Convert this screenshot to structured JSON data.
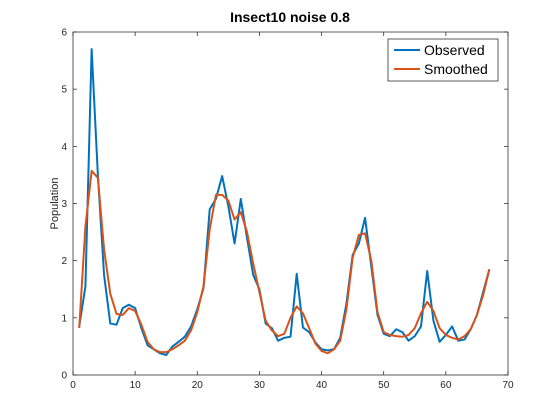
{
  "chart_data": {
    "type": "line",
    "title": "Insect10 noise 0.8",
    "xlabel": "",
    "ylabel": "Population",
    "xlim": [
      0,
      70
    ],
    "ylim": [
      0,
      6
    ],
    "xticks": [
      0,
      10,
      20,
      30,
      40,
      50,
      60,
      70
    ],
    "yticks": [
      0,
      1,
      2,
      3,
      4,
      5,
      6
    ],
    "grid": false,
    "legend_position": "top-right",
    "series": [
      {
        "name": "Observed",
        "color": "#0072BD",
        "x": [
          1,
          2,
          3,
          4,
          5,
          6,
          7,
          8,
          9,
          10,
          11,
          12,
          13,
          14,
          15,
          16,
          17,
          18,
          19,
          20,
          21,
          22,
          23,
          24,
          25,
          26,
          27,
          28,
          29,
          30,
          31,
          32,
          33,
          34,
          35,
          36,
          37,
          38,
          39,
          40,
          41,
          42,
          43,
          44,
          45,
          46,
          47,
          48,
          49,
          50,
          51,
          52,
          53,
          54,
          55,
          56,
          57,
          58,
          59,
          60,
          61,
          62,
          63,
          64,
          65,
          66,
          67
        ],
        "y": [
          0.85,
          1.55,
          5.7,
          3.5,
          1.75,
          0.9,
          0.88,
          1.17,
          1.23,
          1.17,
          0.82,
          0.52,
          0.45,
          0.38,
          0.35,
          0.5,
          0.58,
          0.67,
          0.85,
          1.15,
          1.52,
          2.9,
          3.08,
          3.48,
          2.95,
          2.3,
          3.08,
          2.4,
          1.75,
          1.5,
          0.9,
          0.82,
          0.6,
          0.65,
          0.67,
          1.77,
          0.83,
          0.75,
          0.57,
          0.45,
          0.43,
          0.45,
          0.65,
          1.25,
          2.1,
          2.3,
          2.75,
          1.9,
          1.05,
          0.72,
          0.68,
          0.8,
          0.75,
          0.6,
          0.68,
          0.85,
          1.82,
          0.95,
          0.58,
          0.7,
          0.85,
          0.6,
          0.62,
          0.8,
          1.05,
          1.45,
          1.85
        ]
      },
      {
        "name": "Smoothed",
        "color": "#D95319",
        "x": [
          1,
          2,
          3,
          4,
          5,
          6,
          7,
          8,
          9,
          10,
          11,
          12,
          13,
          14,
          15,
          16,
          17,
          18,
          19,
          20,
          21,
          22,
          23,
          24,
          25,
          26,
          27,
          28,
          29,
          30,
          31,
          32,
          33,
          34,
          35,
          36,
          37,
          38,
          39,
          40,
          41,
          42,
          43,
          44,
          45,
          46,
          47,
          48,
          49,
          50,
          51,
          52,
          53,
          54,
          55,
          56,
          57,
          58,
          59,
          60,
          61,
          62,
          63,
          64,
          65,
          66,
          67
        ],
        "y": [
          0.82,
          2.6,
          3.57,
          3.45,
          2.2,
          1.42,
          1.07,
          1.05,
          1.17,
          1.12,
          0.88,
          0.58,
          0.45,
          0.4,
          0.4,
          0.45,
          0.52,
          0.6,
          0.78,
          1.1,
          1.55,
          2.55,
          3.15,
          3.15,
          3.05,
          2.72,
          2.85,
          2.5,
          1.95,
          1.45,
          0.95,
          0.78,
          0.68,
          0.72,
          1.0,
          1.2,
          1.08,
          0.82,
          0.55,
          0.42,
          0.38,
          0.45,
          0.6,
          1.15,
          2.05,
          2.45,
          2.48,
          2.0,
          1.1,
          0.75,
          0.7,
          0.68,
          0.67,
          0.7,
          0.82,
          1.08,
          1.28,
          1.12,
          0.82,
          0.7,
          0.65,
          0.62,
          0.68,
          0.8,
          1.05,
          1.4,
          1.85
        ]
      }
    ]
  }
}
